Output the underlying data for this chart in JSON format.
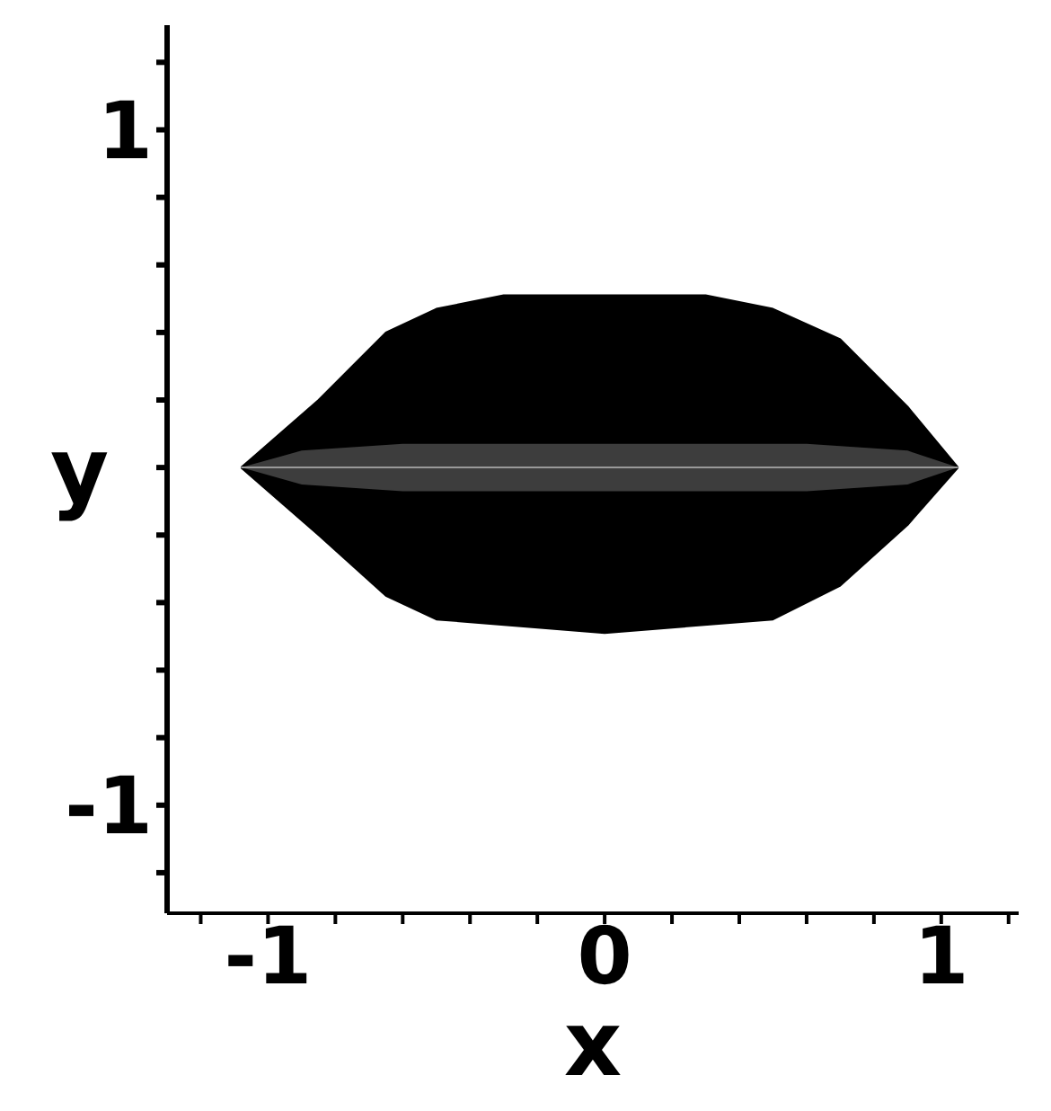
{
  "chart_data": {
    "type": "area",
    "xlabel": "x",
    "ylabel": "y",
    "xlim": [
      -1.3,
      1.23
    ],
    "ylim": [
      -1.32,
      1.31
    ],
    "xticks": [
      {
        "value": -1.2,
        "label": null
      },
      -1,
      {
        "value": -0.8,
        "label": null
      },
      {
        "value": -0.6,
        "label": null
      },
      {
        "value": -0.4,
        "label": null
      },
      {
        "value": -0.2,
        "label": null
      },
      0,
      {
        "value": 0.2,
        "label": null
      },
      {
        "value": 0.4,
        "label": null
      },
      {
        "value": 0.6,
        "label": null
      },
      {
        "value": 0.8,
        "label": null
      },
      1,
      {
        "value": 1.2,
        "label": null
      }
    ],
    "yticks": [
      {
        "value": -1.2,
        "label": null
      },
      -1,
      {
        "value": -0.8,
        "label": null
      },
      {
        "value": -0.6,
        "label": null
      },
      {
        "value": -0.4,
        "label": null
      },
      {
        "value": -0.2,
        "label": null
      },
      {
        "value": 0,
        "label": null
      },
      {
        "value": 0.2,
        "label": null
      },
      {
        "value": 0.4,
        "label": null
      },
      {
        "value": 0.6,
        "label": null
      },
      {
        "value": 0.8,
        "label": null
      },
      1,
      {
        "value": 1.2,
        "label": null
      }
    ],
    "series": [
      {
        "color": "#000000",
        "x": [
          -1.08,
          -0.85,
          -0.65,
          -0.5,
          -0.3,
          0,
          0.3,
          0.5,
          0.7,
          0.9,
          1.05
        ],
        "values": [
          0,
          0.2,
          0.4,
          0.47,
          0.51,
          0.51,
          0.51,
          0.47,
          0.38,
          0.18,
          0
        ]
      },
      {
        "color": "#000000",
        "x": [
          -1.08,
          -0.85,
          -0.65,
          -0.5,
          0,
          0.5,
          0.7,
          0.9,
          1.05
        ],
        "values": [
          0,
          -0.2,
          -0.38,
          -0.45,
          -0.49,
          -0.45,
          -0.35,
          -0.17,
          0
        ]
      },
      {
        "type": "line",
        "color": "#999999",
        "x": [
          -1.08,
          -0.9,
          -0.6,
          0,
          0.6,
          0.9,
          1.05
        ],
        "values": [
          0,
          0,
          0,
          0,
          0,
          0,
          0
        ],
        "lower": [
          0,
          -0.05,
          -0.07,
          -0.07,
          -0.07,
          -0.05,
          0
        ],
        "upper": [
          0,
          0.05,
          0.07,
          0.07,
          0.07,
          0.05,
          0
        ]
      }
    ],
    "grid": false,
    "legend": false
  }
}
